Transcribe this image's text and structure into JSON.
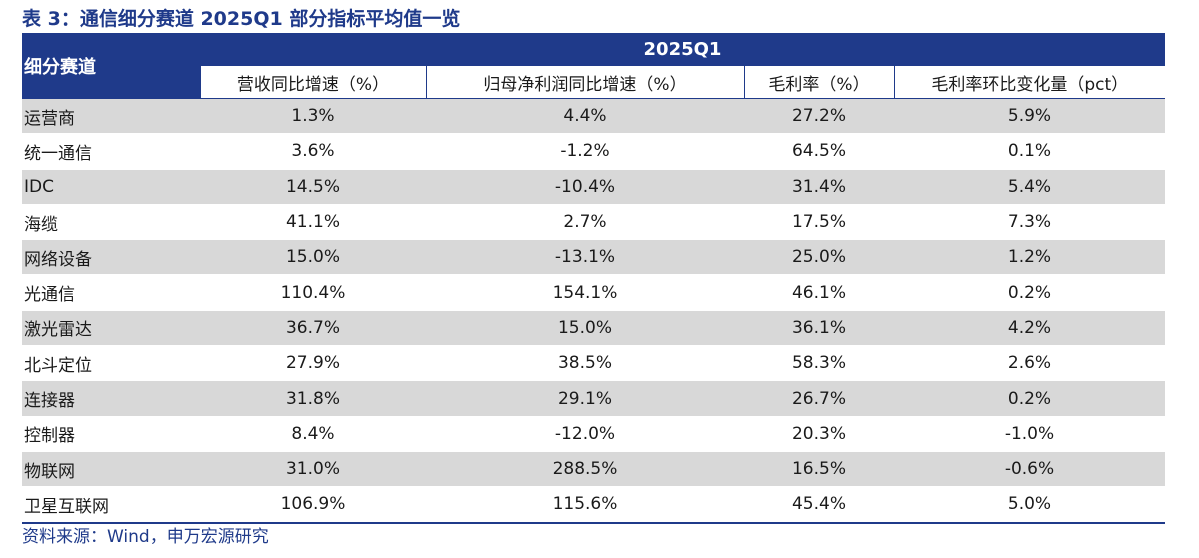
{
  "title": "表 3：通信细分赛道 2025Q1 部分指标平均值一览",
  "table": {
    "corner_header": "细分赛道",
    "period_header": "2025Q1",
    "columns": [
      "营收同比增速（%）",
      "归母净利润同比增速（%）",
      "毛利率（%）",
      "毛利率环比变化量（pct）"
    ],
    "rows": [
      {
        "name": "运营商",
        "values": [
          "1.3%",
          "4.4%",
          "27.2%",
          "5.9%"
        ]
      },
      {
        "name": "统一通信",
        "values": [
          "3.6%",
          "-1.2%",
          "64.5%",
          "0.1%"
        ]
      },
      {
        "name": "IDC",
        "values": [
          "14.5%",
          "-10.4%",
          "31.4%",
          "5.4%"
        ]
      },
      {
        "name": "海缆",
        "values": [
          "41.1%",
          "2.7%",
          "17.5%",
          "7.3%"
        ]
      },
      {
        "name": "网络设备",
        "values": [
          "15.0%",
          "-13.1%",
          "25.0%",
          "1.2%"
        ]
      },
      {
        "name": "光通信",
        "values": [
          "110.4%",
          "154.1%",
          "46.1%",
          "0.2%"
        ]
      },
      {
        "name": "激光雷达",
        "values": [
          "36.7%",
          "15.0%",
          "36.1%",
          "4.2%"
        ]
      },
      {
        "name": "北斗定位",
        "values": [
          "27.9%",
          "38.5%",
          "58.3%",
          "2.6%"
        ]
      },
      {
        "name": "连接器",
        "values": [
          "31.8%",
          "29.1%",
          "26.7%",
          "0.2%"
        ]
      },
      {
        "name": "控制器",
        "values": [
          "8.4%",
          "-12.0%",
          "20.3%",
          "-1.0%"
        ]
      },
      {
        "name": "物联网",
        "values": [
          "31.0%",
          "288.5%",
          "16.5%",
          "-0.6%"
        ]
      },
      {
        "name": "卫星互联网",
        "values": [
          "106.9%",
          "115.6%",
          "45.4%",
          "5.0%"
        ]
      }
    ]
  },
  "source": "资料来源：Wind，申万宏源研究",
  "colors": {
    "header_bg": "#1f3a8a",
    "stripe": "#d8d8d8",
    "accent_text": "#1f3a8a"
  }
}
